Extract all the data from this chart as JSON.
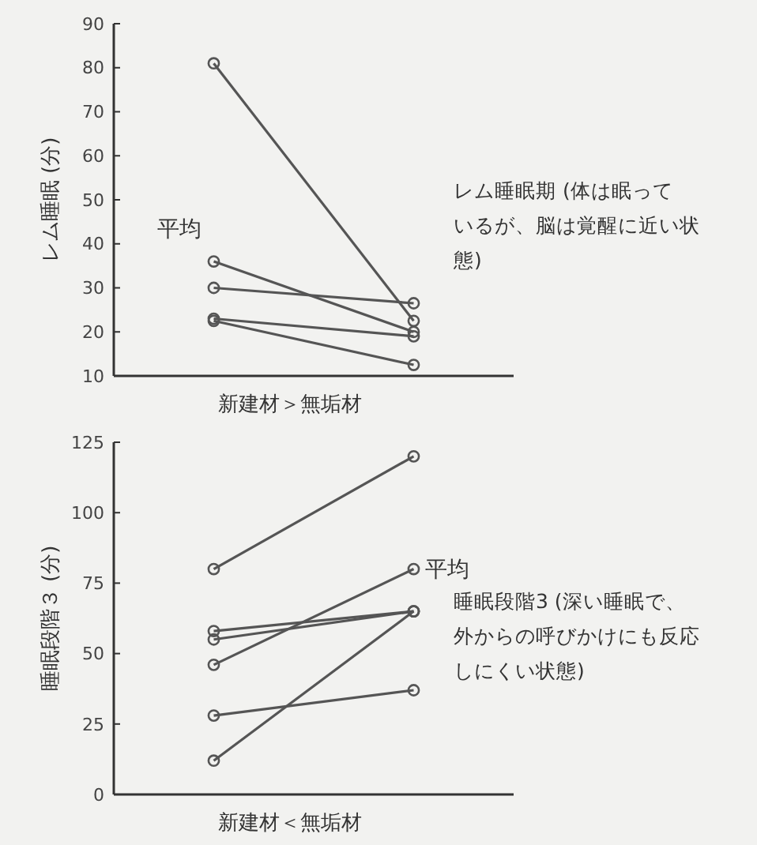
{
  "chart_data": [
    {
      "type": "line",
      "categories": [
        null,
        null
      ],
      "ylabel": "レム睡眠 (分)",
      "xlabel": "新建材＞無垢材",
      "ylim": [
        10,
        90
      ],
      "yticks": [
        10,
        20,
        30,
        40,
        50,
        60,
        70,
        80,
        90
      ],
      "marker": "circle",
      "grid": false,
      "series": [
        {
          "color": "#555555",
          "values": [
            81,
            22.5
          ]
        },
        {
          "name": "平均",
          "color": "#555555",
          "values": [
            36,
            20
          ]
        },
        {
          "color": "#555555",
          "values": [
            30,
            26.5
          ]
        },
        {
          "color": "#555555",
          "values": [
            23,
            19
          ]
        },
        {
          "color": "#555555",
          "values": [
            22.5,
            12.5
          ]
        }
      ],
      "annotations": [
        "レム睡眠期 (体は眠っているが、脳は覚醒に近い状態)"
      ]
    },
    {
      "type": "line",
      "categories": [
        null,
        null
      ],
      "ylabel": "睡眠段階３ (分)",
      "xlabel": "新建材＜無垢材",
      "ylim": [
        0,
        125
      ],
      "yticks": [
        0,
        25,
        50,
        75,
        100,
        125
      ],
      "marker": "circle",
      "grid": false,
      "series": [
        {
          "color": "#555555",
          "values": [
            80,
            120
          ]
        },
        {
          "color": "#555555",
          "values": [
            58,
            65
          ]
        },
        {
          "color": "#555555",
          "values": [
            55,
            65
          ]
        },
        {
          "name": "平均",
          "color": "#555555",
          "values": [
            46,
            80
          ]
        },
        {
          "color": "#555555",
          "values": [
            28,
            37
          ]
        },
        {
          "color": "#555555",
          "values": [
            12,
            65
          ]
        }
      ],
      "annotations": [
        "睡眠段階3 (深い睡眠で、外からの呼びかけにも反応しにくい状態)"
      ]
    }
  ]
}
